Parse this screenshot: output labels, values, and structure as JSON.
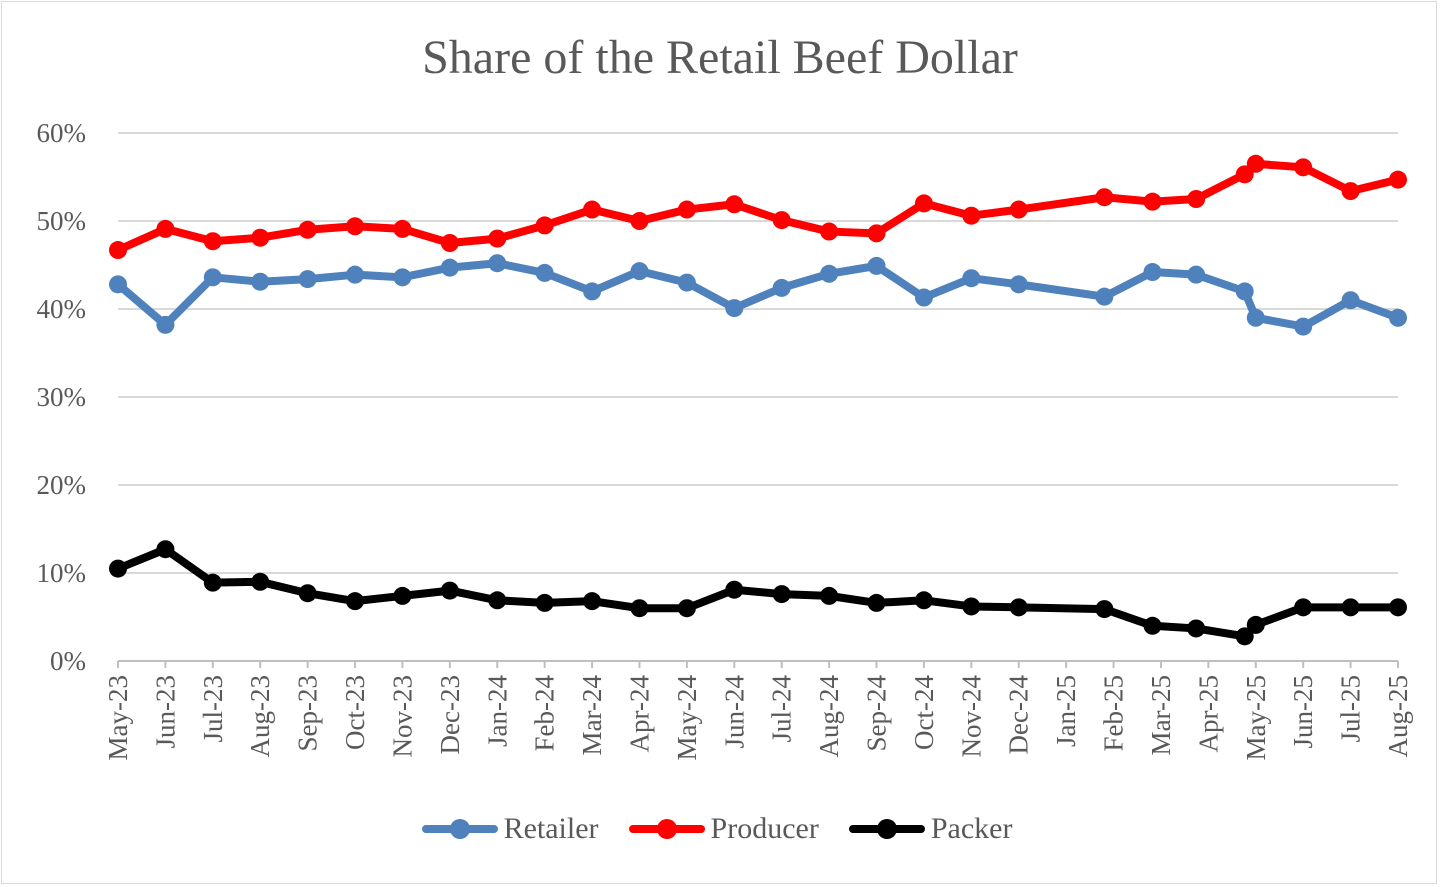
{
  "chart_data": {
    "type": "line",
    "title": "Share of the Retail Beef Dollar",
    "xlabel": "",
    "ylabel": "",
    "ylim": [
      0,
      60
    ],
    "y_ticks": [
      "0%",
      "10%",
      "20%",
      "30%",
      "40%",
      "50%",
      "60%"
    ],
    "x_ticks": [
      "May-23",
      "Jun-23",
      "Jul-23",
      "Aug-23",
      "Sep-23",
      "Oct-23",
      "Nov-23",
      "Dec-23",
      "Jan-24",
      "Feb-24",
      "Mar-24",
      "Apr-24",
      "May-24",
      "Jun-24",
      "Jul-24",
      "Aug-24",
      "Sep-24",
      "Oct-24",
      "Nov-24",
      "Dec-24",
      "Jan-25",
      "Feb-25",
      "Mar-25",
      "Apr-25",
      "May-25",
      "Jun-25",
      "Jul-25",
      "Aug-25"
    ],
    "grid": true,
    "legend": "bottom",
    "x": [
      "2023-05-01",
      "2023-06-01",
      "2023-07-01",
      "2023-08-01",
      "2023-09-01",
      "2023-10-01",
      "2023-11-01",
      "2023-12-01",
      "2024-01-01",
      "2024-02-01",
      "2024-03-01",
      "2024-04-01",
      "2024-05-01",
      "2024-06-01",
      "2024-07-01",
      "2024-08-01",
      "2024-09-01",
      "2024-10-01",
      "2024-11-01",
      "2024-12-01",
      "2025-01-26",
      "2025-02-24",
      "2025-03-24",
      "2025-04-24",
      "2025-05-01",
      "2025-06-01",
      "2025-07-01",
      "2025-08-01"
    ],
    "series": [
      {
        "name": "Retailer",
        "color": "#4f81bd",
        "values": [
          42.8,
          38.2,
          43.6,
          43.1,
          43.4,
          43.9,
          43.6,
          44.7,
          45.2,
          44.1,
          42.0,
          44.3,
          43.0,
          40.1,
          42.4,
          44.0,
          44.9,
          41.3,
          43.5,
          42.8,
          41.4,
          44.2,
          43.9,
          42.0,
          39.0,
          38.0,
          41.0,
          39.0
        ]
      },
      {
        "name": "Producer",
        "color": "#ff0000",
        "values": [
          46.7,
          49.1,
          47.7,
          48.1,
          49.0,
          49.4,
          49.1,
          47.5,
          48.0,
          49.5,
          51.3,
          50.0,
          51.3,
          51.9,
          50.1,
          48.8,
          48.6,
          52.0,
          50.6,
          51.3,
          52.7,
          52.2,
          52.5,
          55.3,
          56.5,
          56.1,
          53.4,
          54.7
        ]
      },
      {
        "name": "Packer",
        "color": "#000000",
        "values": [
          10.5,
          12.7,
          8.9,
          9.0,
          7.7,
          6.8,
          7.4,
          8.0,
          6.9,
          6.6,
          6.8,
          6.0,
          6.0,
          8.1,
          7.6,
          7.4,
          6.6,
          6.9,
          6.2,
          6.1,
          5.9,
          4.0,
          3.7,
          2.8,
          4.1,
          6.1,
          6.1,
          6.1
        ]
      }
    ]
  }
}
